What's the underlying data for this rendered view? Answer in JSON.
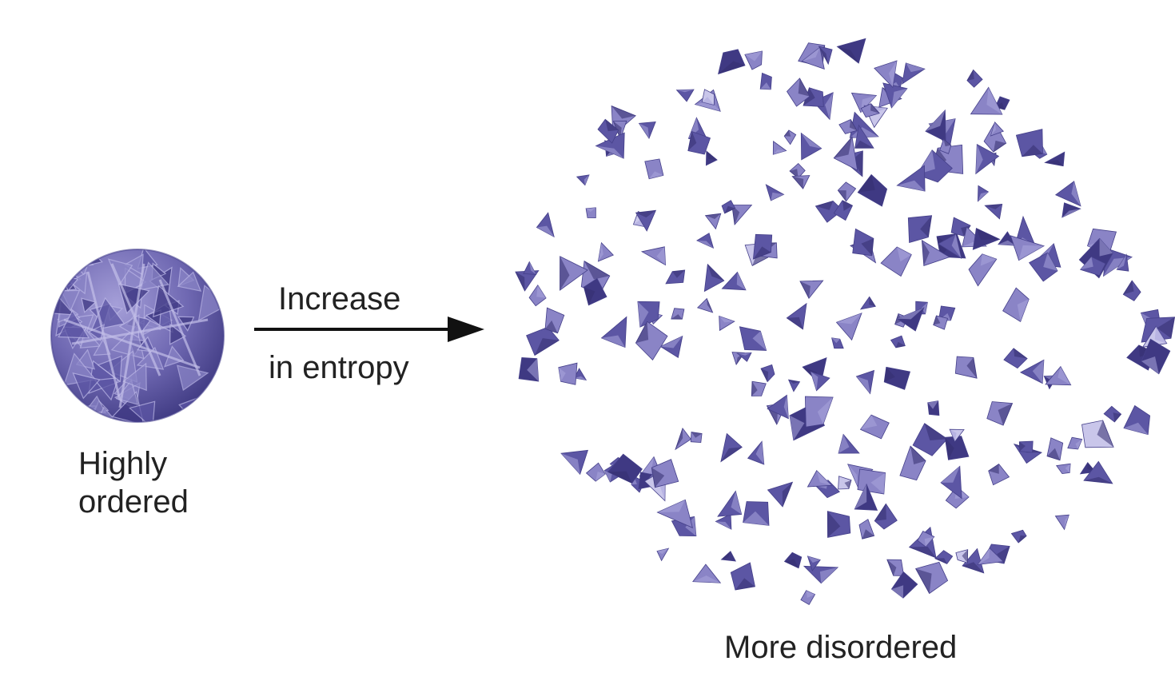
{
  "labels": {
    "arrow_line1": "Increase",
    "arrow_line2": "in entropy",
    "ordered_line1": "Highly",
    "ordered_line2": "ordered",
    "disordered": "More disordered"
  },
  "colors": {
    "fragment_light": "#8a84c6",
    "fragment_mid": "#5c56a4",
    "fragment_dark": "#3f3983",
    "fragment_pale": "#c9c6ea",
    "sphere_base": "#6a64ad",
    "sphere_shadow": "#3d3880",
    "arrow": "#111111",
    "text": "#222222"
  },
  "icons": {
    "ordered_state": "crystal-sphere-icon",
    "disordered_state": "scattered-fragments-icon",
    "transition": "right-arrow-icon"
  }
}
